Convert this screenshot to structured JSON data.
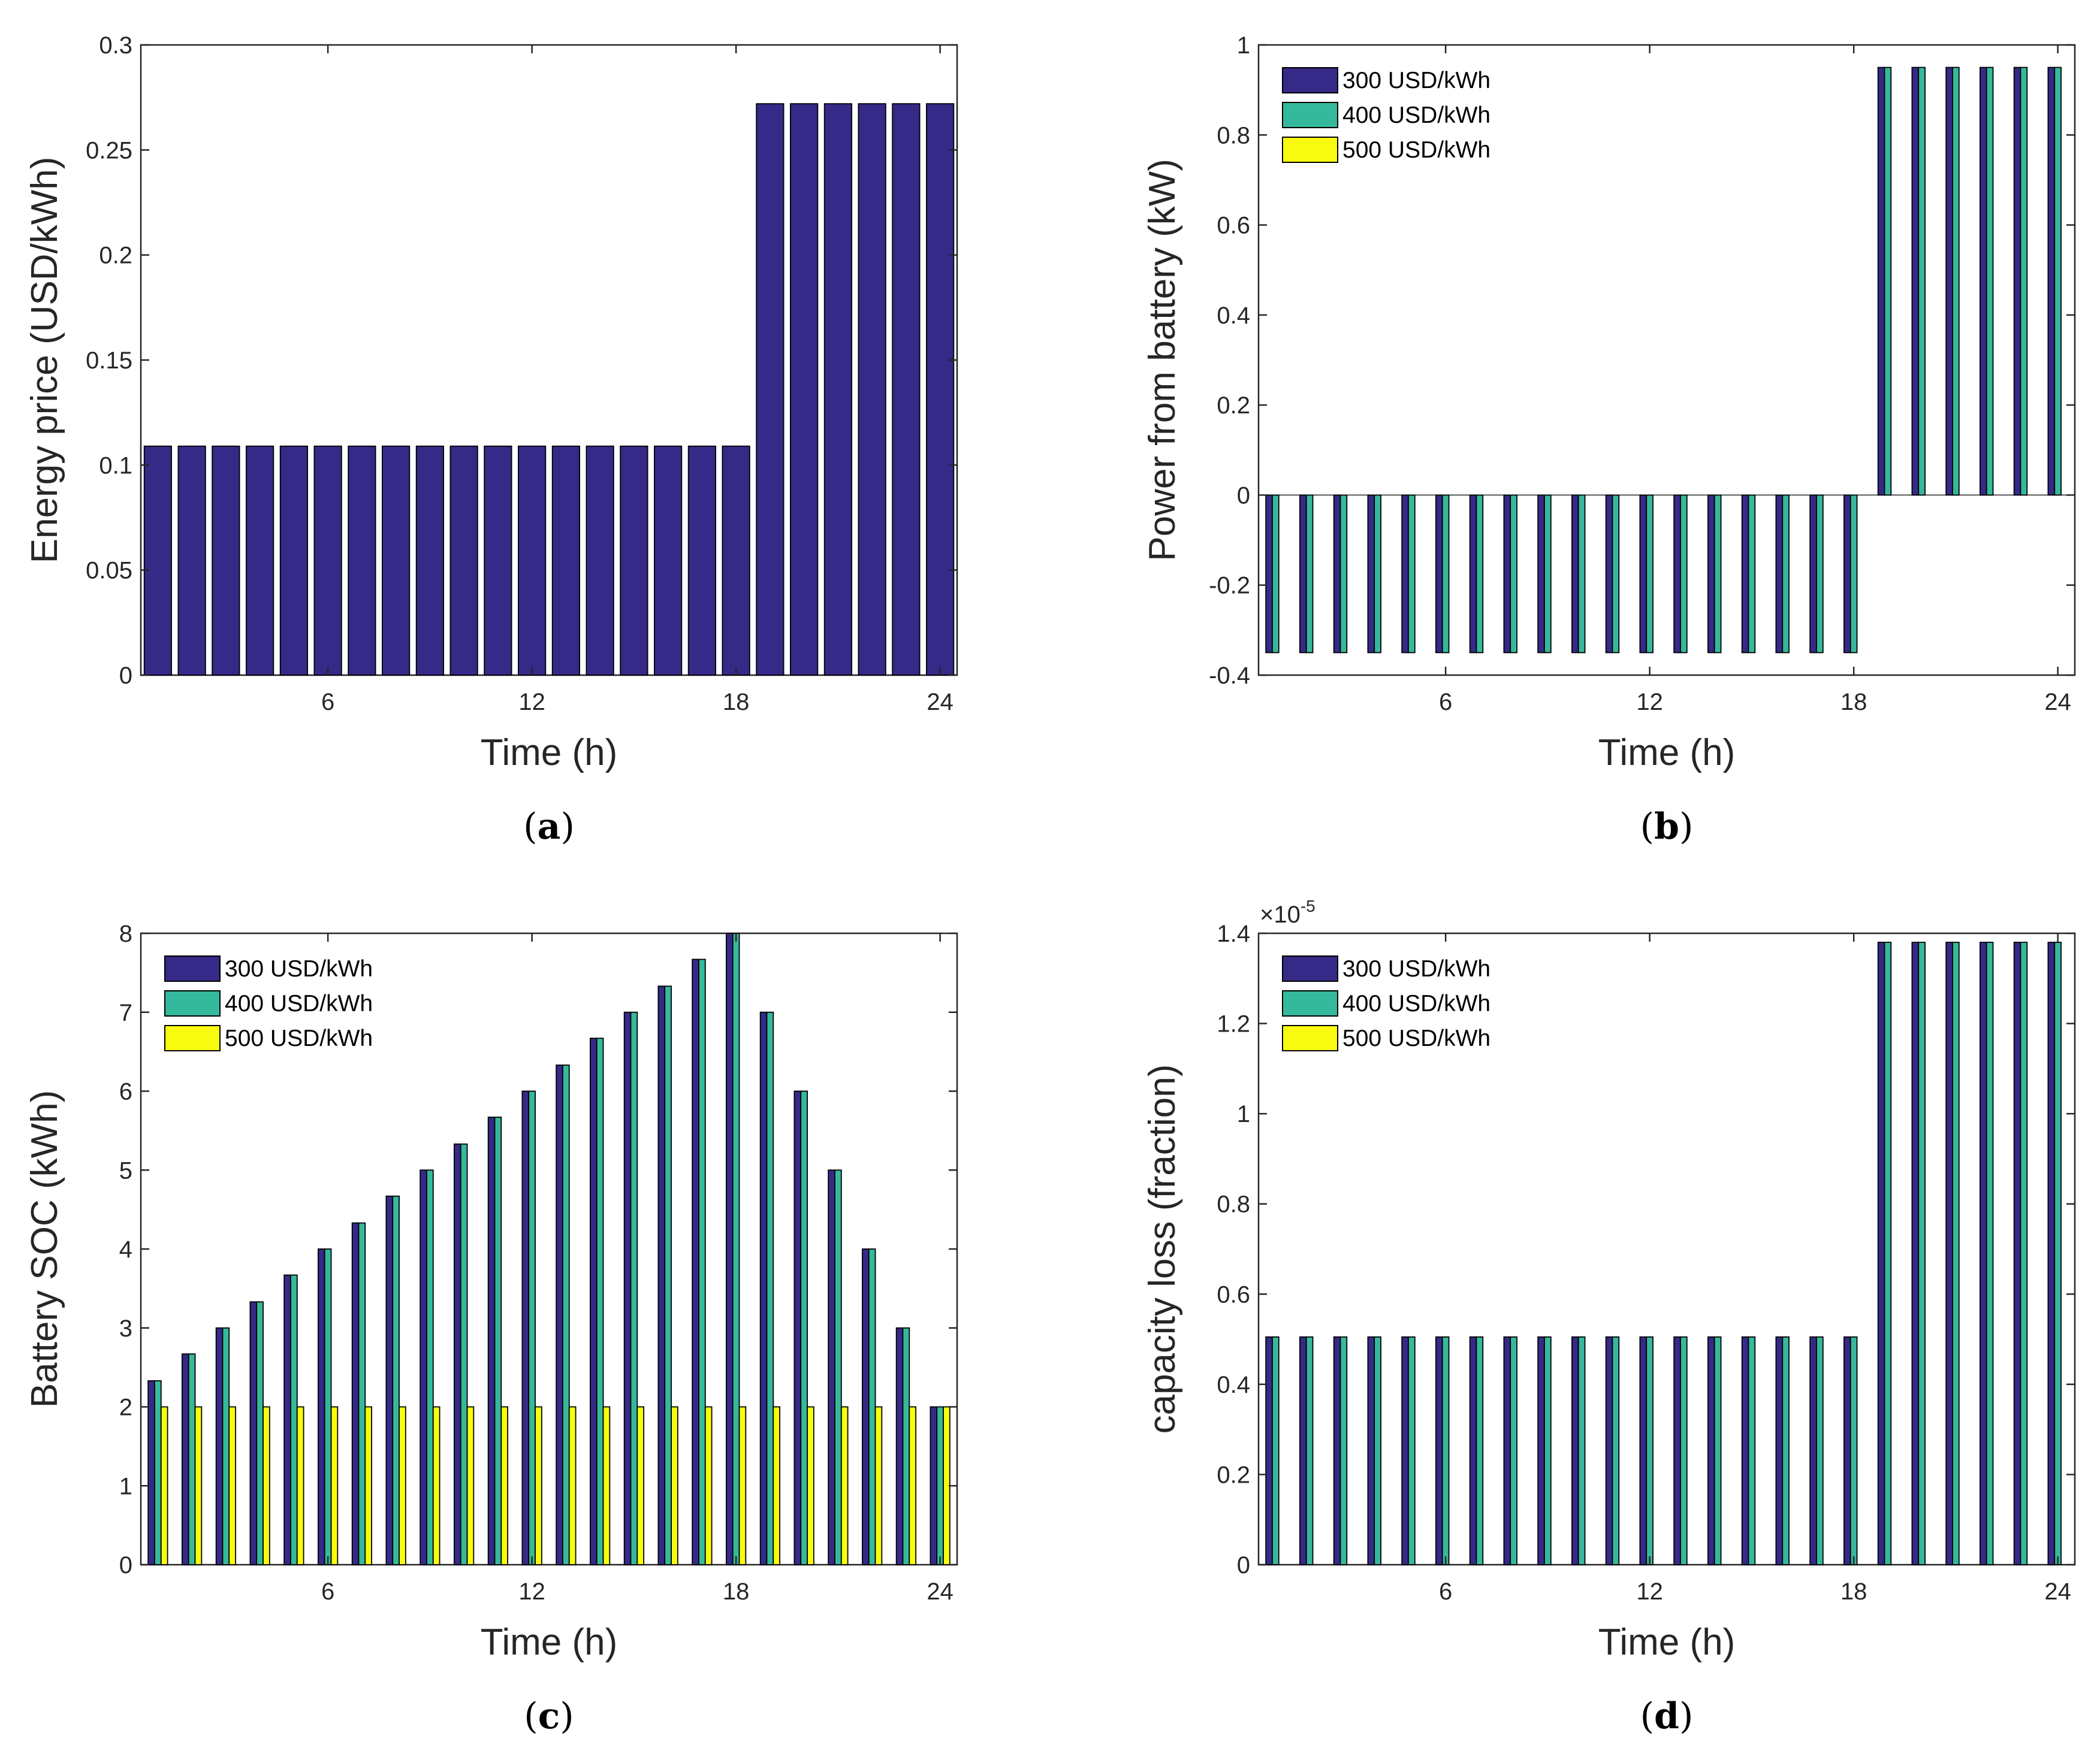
{
  "colors": {
    "series_300": "#352a87",
    "series_400": "#35b99c",
    "series_500": "#f9fb0e",
    "axis": "#262626",
    "bar_edge": "#000000"
  },
  "chart_data": [
    {
      "id": "a",
      "type": "bar",
      "caption_letter": "a",
      "caption_open": "(",
      "caption_close": ")",
      "xlabel": "Time (h)",
      "ylabel": "Energy price (USD/kWh)",
      "xlim": [
        0.5,
        24.5
      ],
      "ylim": [
        0,
        0.3
      ],
      "xticks": [
        6,
        12,
        18,
        24
      ],
      "xtick_labels": [
        "6",
        "12",
        "18",
        "24"
      ],
      "yticks": [
        0,
        0.05,
        0.1,
        0.15,
        0.2,
        0.25,
        0.3
      ],
      "ytick_labels": [
        "0",
        "0.05",
        "0.1",
        "0.15",
        "0.2",
        "0.25",
        "0.3"
      ],
      "bar_width": 0.8,
      "legend": [],
      "x": [
        1,
        2,
        3,
        4,
        5,
        6,
        7,
        8,
        9,
        10,
        11,
        12,
        13,
        14,
        15,
        16,
        17,
        18,
        19,
        20,
        21,
        22,
        23,
        24
      ],
      "series": [
        {
          "name": "Energy price",
          "color_key": "series_300",
          "values": [
            0.109,
            0.109,
            0.109,
            0.109,
            0.109,
            0.109,
            0.109,
            0.109,
            0.109,
            0.109,
            0.109,
            0.109,
            0.109,
            0.109,
            0.109,
            0.109,
            0.109,
            0.109,
            0.272,
            0.272,
            0.272,
            0.272,
            0.272,
            0.272
          ]
        }
      ]
    },
    {
      "id": "b",
      "type": "bar",
      "caption_letter": "b",
      "caption_open": "(",
      "caption_close": ")",
      "xlabel": "Time (h)",
      "ylabel": "Power from battery (kW)",
      "xlim": [
        0.5,
        24.5
      ],
      "ylim": [
        -0.4,
        1
      ],
      "xticks": [
        6,
        12,
        18,
        24
      ],
      "xtick_labels": [
        "6",
        "12",
        "18",
        "24"
      ],
      "yticks": [
        -0.4,
        -0.2,
        0,
        0.2,
        0.4,
        0.6,
        0.8,
        1
      ],
      "ytick_labels": [
        "-0.4",
        "-0.2",
        "0",
        "0.2",
        "0.4",
        "0.6",
        "0.8",
        "1"
      ],
      "bar_width": 0.8,
      "legend": [
        "300 USD/kWh",
        "400 USD/kWh",
        "500 USD/kWh"
      ],
      "legend_position": "top-left",
      "x": [
        1,
        2,
        3,
        4,
        5,
        6,
        7,
        8,
        9,
        10,
        11,
        12,
        13,
        14,
        15,
        16,
        17,
        18,
        19,
        20,
        21,
        22,
        23,
        24
      ],
      "series": [
        {
          "name": "300 USD/kWh",
          "color_key": "series_300",
          "values": [
            -0.35,
            -0.35,
            -0.35,
            -0.35,
            -0.35,
            -0.35,
            -0.35,
            -0.35,
            -0.35,
            -0.35,
            -0.35,
            -0.35,
            -0.35,
            -0.35,
            -0.35,
            -0.35,
            -0.35,
            -0.35,
            0.95,
            0.95,
            0.95,
            0.95,
            0.95,
            0.95
          ]
        },
        {
          "name": "400 USD/kWh",
          "color_key": "series_400",
          "values": [
            -0.35,
            -0.35,
            -0.35,
            -0.35,
            -0.35,
            -0.35,
            -0.35,
            -0.35,
            -0.35,
            -0.35,
            -0.35,
            -0.35,
            -0.35,
            -0.35,
            -0.35,
            -0.35,
            -0.35,
            -0.35,
            0.95,
            0.95,
            0.95,
            0.95,
            0.95,
            0.95
          ]
        },
        {
          "name": "500 USD/kWh",
          "color_key": "series_500",
          "values": [
            0,
            0,
            0,
            0,
            0,
            0,
            0,
            0,
            0,
            0,
            0,
            0,
            0,
            0,
            0,
            0,
            0,
            0,
            0,
            0,
            0,
            0,
            0,
            0
          ]
        }
      ]
    },
    {
      "id": "c",
      "type": "bar",
      "caption_letter": "c",
      "caption_open": "(",
      "caption_close": ")",
      "xlabel": "Time (h)",
      "ylabel": "Battery SOC (kWh)",
      "xlim": [
        0.5,
        24.5
      ],
      "ylim": [
        0,
        8
      ],
      "xticks": [
        6,
        12,
        18,
        24
      ],
      "xtick_labels": [
        "6",
        "12",
        "18",
        "24"
      ],
      "yticks": [
        0,
        1,
        2,
        3,
        4,
        5,
        6,
        7,
        8
      ],
      "ytick_labels": [
        "0",
        "1",
        "2",
        "3",
        "4",
        "5",
        "6",
        "7",
        "8"
      ],
      "bar_width": 0.8,
      "legend": [
        "300 USD/kWh",
        "400 USD/kWh",
        "500 USD/kWh"
      ],
      "legend_position": "top-left",
      "x": [
        1,
        2,
        3,
        4,
        5,
        6,
        7,
        8,
        9,
        10,
        11,
        12,
        13,
        14,
        15,
        16,
        17,
        18,
        19,
        20,
        21,
        22,
        23,
        24
      ],
      "series": [
        {
          "name": "300 USD/kWh",
          "color_key": "series_300",
          "values": [
            2.33,
            2.67,
            3.0,
            3.33,
            3.67,
            4.0,
            4.33,
            4.67,
            5.0,
            5.33,
            5.67,
            6.0,
            6.33,
            6.67,
            7.0,
            7.33,
            7.67,
            8.0,
            7.0,
            6.0,
            5.0,
            4.0,
            3.0,
            2.0
          ]
        },
        {
          "name": "400 USD/kWh",
          "color_key": "series_400",
          "values": [
            2.33,
            2.67,
            3.0,
            3.33,
            3.67,
            4.0,
            4.33,
            4.67,
            5.0,
            5.33,
            5.67,
            6.0,
            6.33,
            6.67,
            7.0,
            7.33,
            7.67,
            8.0,
            7.0,
            6.0,
            5.0,
            4.0,
            3.0,
            2.0
          ]
        },
        {
          "name": "500 USD/kWh",
          "color_key": "series_500",
          "values": [
            2,
            2,
            2,
            2,
            2,
            2,
            2,
            2,
            2,
            2,
            2,
            2,
            2,
            2,
            2,
            2,
            2,
            2,
            2,
            2,
            2,
            2,
            2,
            2
          ]
        }
      ]
    },
    {
      "id": "d",
      "type": "bar",
      "caption_letter": "d",
      "caption_open": "(",
      "caption_close": ")",
      "xlabel": "Time (h)",
      "ylabel": "capacity loss (fraction)",
      "exponent_base": "×10",
      "exponent_power": "-5",
      "xlim": [
        0.5,
        24.5
      ],
      "ylim": [
        0,
        1.4
      ],
      "xticks": [
        6,
        12,
        18,
        24
      ],
      "xtick_labels": [
        "6",
        "12",
        "18",
        "24"
      ],
      "yticks": [
        0,
        0.2,
        0.4,
        0.6,
        0.8,
        1,
        1.2,
        1.4
      ],
      "ytick_labels": [
        "0",
        "0.2",
        "0.4",
        "0.6",
        "0.8",
        "1",
        "1.2",
        "1.4"
      ],
      "bar_width": 0.8,
      "legend": [
        "300 USD/kWh",
        "400 USD/kWh",
        "500 USD/kWh"
      ],
      "legend_position": "top-left",
      "x": [
        1,
        2,
        3,
        4,
        5,
        6,
        7,
        8,
        9,
        10,
        11,
        12,
        13,
        14,
        15,
        16,
        17,
        18,
        19,
        20,
        21,
        22,
        23,
        24
      ],
      "series": [
        {
          "name": "300 USD/kWh",
          "color_key": "series_300",
          "values": [
            0.505,
            0.505,
            0.505,
            0.505,
            0.505,
            0.505,
            0.505,
            0.505,
            0.505,
            0.505,
            0.505,
            0.505,
            0.505,
            0.505,
            0.505,
            0.505,
            0.505,
            0.505,
            1.38,
            1.38,
            1.38,
            1.38,
            1.38,
            1.38
          ]
        },
        {
          "name": "400 USD/kWh",
          "color_key": "series_400",
          "values": [
            0.505,
            0.505,
            0.505,
            0.505,
            0.505,
            0.505,
            0.505,
            0.505,
            0.505,
            0.505,
            0.505,
            0.505,
            0.505,
            0.505,
            0.505,
            0.505,
            0.505,
            0.505,
            1.38,
            1.38,
            1.38,
            1.38,
            1.38,
            1.38
          ]
        },
        {
          "name": "500 USD/kWh",
          "color_key": "series_500",
          "values": [
            0,
            0,
            0,
            0,
            0,
            0,
            0,
            0,
            0,
            0,
            0,
            0,
            0,
            0,
            0,
            0,
            0,
            0,
            0,
            0,
            0,
            0,
            0,
            0
          ]
        }
      ]
    }
  ]
}
